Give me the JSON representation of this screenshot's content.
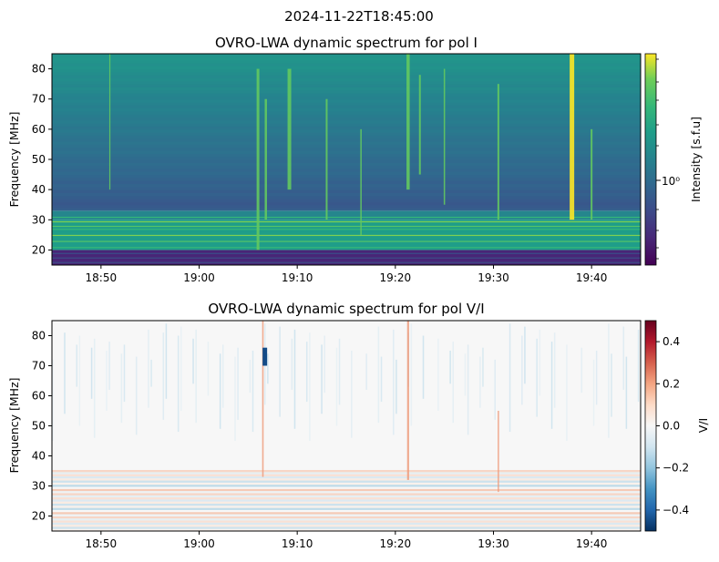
{
  "figure": {
    "suptitle": "2024-11-22T18:45:00"
  },
  "chart_data": [
    {
      "type": "heatmap",
      "title": "OVRO-LWA dynamic spectrum for pol I",
      "xlabel": "",
      "ylabel": "Frequency [MHz]",
      "x_range": [
        "18:45",
        "19:45"
      ],
      "ylim": [
        15,
        85
      ],
      "x_ticks": [
        "18:50",
        "19:00",
        "19:10",
        "19:20",
        "19:30",
        "19:40"
      ],
      "y_ticks": [
        20,
        30,
        40,
        50,
        60,
        70,
        80
      ],
      "colormap": "viridis",
      "colorbar": {
        "label": "Intensity [s.f.u]",
        "scale": "log",
        "tick_label": "10⁰",
        "tick_value": 1
      },
      "bursts_minutes_after_1845": [
        5.9,
        21,
        21.8,
        24.2,
        28,
        31.5,
        36.3,
        37.5,
        40,
        45.5,
        53,
        55
      ],
      "bands_mhz": [
        {
          "from": 15,
          "to": 20,
          "level": 0.12
        },
        {
          "from": 20,
          "to": 30,
          "level": 0.62
        },
        {
          "from": 30,
          "to": 33,
          "level": 0.52
        },
        {
          "from": 33,
          "to": 60,
          "level": 0.34
        },
        {
          "from": 60,
          "to": 85,
          "level": 0.55
        }
      ]
    },
    {
      "type": "heatmap",
      "title": "OVRO-LWA dynamic spectrum for pol V/I",
      "xlabel": "",
      "ylabel": "Frequency [MHz]",
      "x_range": [
        "18:45",
        "19:45"
      ],
      "ylim": [
        15,
        85
      ],
      "x_ticks": [
        "18:50",
        "19:00",
        "19:10",
        "19:20",
        "19:30",
        "19:40"
      ],
      "y_ticks": [
        20,
        30,
        40,
        50,
        60,
        70,
        80
      ],
      "colormap": "RdBu_r",
      "colorbar": {
        "label": "V/I",
        "range": [
          -0.5,
          0.5
        ],
        "ticks": [
          "0.4",
          "0.2",
          "0.0",
          "−0.2",
          "−0.4"
        ],
        "tick_values": [
          0.4,
          0.2,
          0.0,
          -0.2,
          -0.4
        ]
      },
      "bursts_minutes_after_1845": [
        21.5,
        36.3,
        45.5
      ]
    }
  ]
}
